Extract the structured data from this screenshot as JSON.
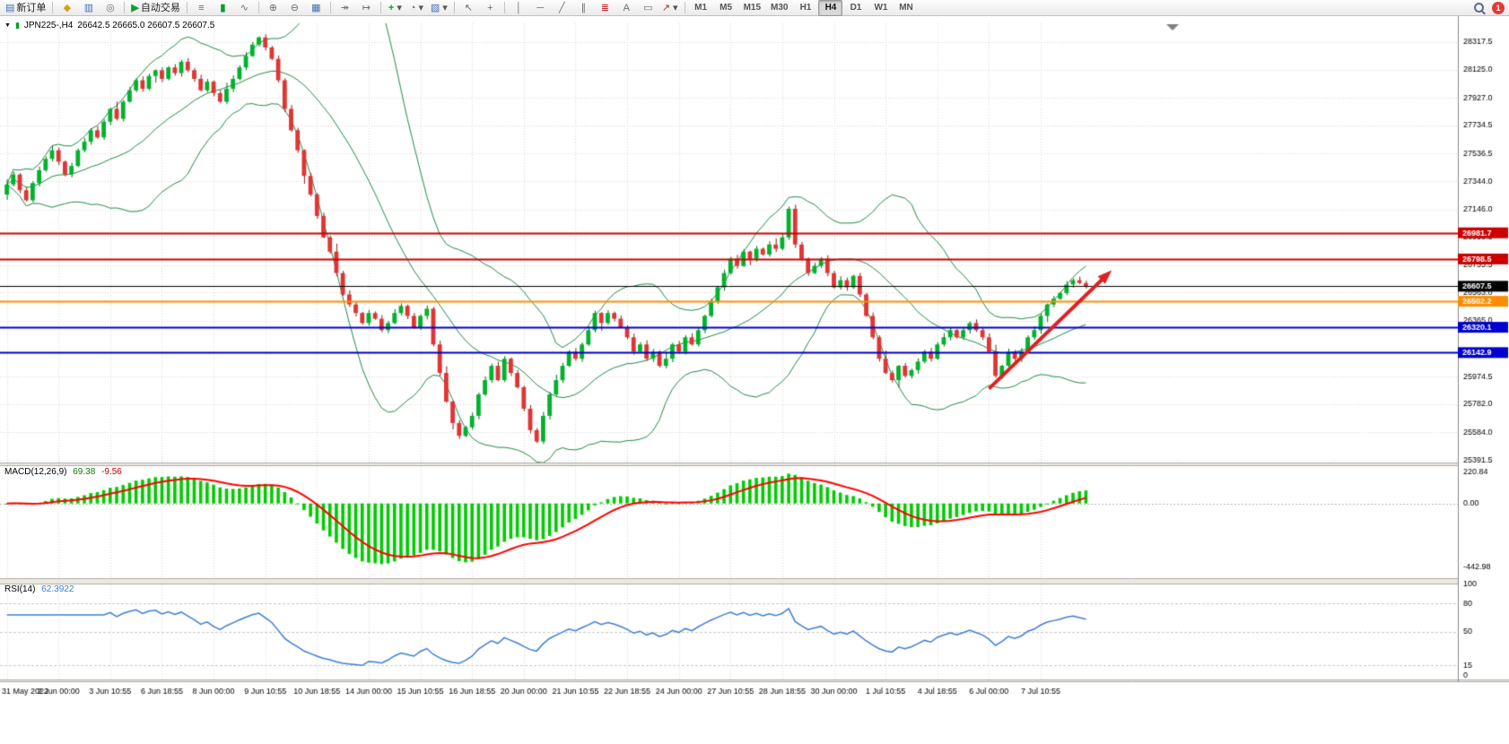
{
  "toolbar": {
    "new_order_label": "新订单",
    "auto_trading_label": "自动交易",
    "timeframes": [
      "M1",
      "M5",
      "M15",
      "M30",
      "H1",
      "H4",
      "D1",
      "W1",
      "MN"
    ],
    "active_timeframe": "H4",
    "notification_count": "1"
  },
  "icons": {
    "new_order": "▤",
    "market_watch": "◆",
    "navigator": "▥",
    "signals": "◎",
    "autotrading": "▶",
    "chart_bars": "≡",
    "chart_candles": "▮",
    "chart_line": "∿",
    "zoom_in": "⊕",
    "zoom_out": "⊖",
    "tile_windows": "▦",
    "auto_scroll": "↠",
    "chart_shift": "↦",
    "indicators": "+",
    "periods": "◔",
    "templates": "▧",
    "cursor": "↖",
    "crosshair": "+",
    "vline": "│",
    "hline": "─",
    "trendline": "╱",
    "channel": "∥",
    "fibonacci": "≣",
    "text": "A",
    "label": "▭",
    "arrows": "↗",
    "caret": "▾",
    "dropdown": "▼",
    "mini_chart": "▮"
  },
  "chart": {
    "title": {
      "symbol_period": "JPN225-,H4",
      "ohlc": "26642.5 26665.0 26607.5 26607.5"
    }
  },
  "chart_data": {
    "type": "candlestick",
    "symbol": "JPN225-",
    "period": "H4",
    "title": "JPN225-,H4",
    "ohlc_display": {
      "open": "26642.5",
      "high": "26665.0",
      "low": "26607.5",
      "close": "26607.5"
    },
    "x_labels": [
      "31 May 2022",
      "2 Jun 00:00",
      "3 Jun 10:55",
      "6 Jun 18:55",
      "8 Jun 00:00",
      "9 Jun 10:55",
      "10 Jun 18:55",
      "14 Jun 00:00",
      "15 Jun 10:55",
      "16 Jun 18:55",
      "20 Jun 00:00",
      "21 Jun 10:55",
      "22 Jun 18:55",
      "24 Jun 00:00",
      "27 Jun 10:55",
      "28 Jun 18:55",
      "30 Jun 00:00",
      "1 Jul 10:55",
      "4 Jul 18:55",
      "6 Jul 00:00",
      "7 Jul 10:55"
    ],
    "y_axis_labels": [
      "28317.5",
      "28125.0",
      "27927.0",
      "27734.5",
      "27536.5",
      "27344.0",
      "27146.0",
      "26953.5",
      "26755.5",
      "26563.0",
      "26365.0",
      "25974.5",
      "25782.0",
      "25584.0",
      "25391.5"
    ],
    "price_range": {
      "min": 25373,
      "max": 28449
    },
    "first_open": 27250,
    "candles_close": [
      27320,
      27390,
      27280,
      27210,
      27330,
      27420,
      27500,
      27560,
      27480,
      27390,
      27450,
      27560,
      27620,
      27700,
      27650,
      27760,
      27850,
      27780,
      27900,
      27980,
      28050,
      27990,
      28080,
      28120,
      28060,
      28140,
      28100,
      28180,
      28120,
      28060,
      27980,
      28040,
      27960,
      27900,
      27990,
      28060,
      28140,
      28220,
      28300,
      28350,
      28280,
      28200,
      28050,
      27850,
      27700,
      27560,
      27380,
      27250,
      27100,
      26950,
      26850,
      26700,
      26550,
      26480,
      26420,
      26350,
      26420,
      26380,
      26300,
      26350,
      26420,
      26470,
      26400,
      26320,
      26400,
      26450,
      26200,
      26000,
      25800,
      25650,
      25560,
      25620,
      25700,
      25850,
      25950,
      26050,
      25950,
      26100,
      26000,
      25900,
      25750,
      25600,
      25520,
      25700,
      25850,
      25950,
      26050,
      26150,
      26100,
      26200,
      26300,
      26420,
      26350,
      26420,
      26380,
      26320,
      26250,
      26150,
      26200,
      26100,
      26150,
      26050,
      26100,
      26200,
      26150,
      26250,
      26200,
      26300,
      26400,
      26500,
      26600,
      26700,
      26800,
      26750,
      26850,
      26800,
      26870,
      26830,
      26900,
      26870,
      26950,
      27150,
      26900,
      26800,
      26700,
      26750,
      26800,
      26700,
      26600,
      26650,
      26600,
      26680,
      26550,
      26400,
      26250,
      26100,
      26000,
      25950,
      26050,
      25980,
      26020,
      26080,
      26150,
      26100,
      26200,
      26250,
      26300,
      26250,
      26300,
      26350,
      26300,
      26250,
      26150,
      25980,
      26050,
      26150,
      26100,
      26150,
      26250,
      26300,
      26400,
      26480,
      26520,
      26560,
      26620,
      26650,
      26630,
      26607.5
    ],
    "up_color": "#00b22c",
    "down_color": "#e03434",
    "bollinger": {
      "period": 20,
      "deviation": 2,
      "color": "#1e8c46"
    },
    "horizontal_lines": [
      {
        "price": 26981.7,
        "badge": "26981.7",
        "color": "#cc0000",
        "width": 2
      },
      {
        "price": 26798.5,
        "badge": "26798.5",
        "color": "#cc0000",
        "width": 2
      },
      {
        "price": 26607.5,
        "badge": "26607.5",
        "color": "#000000",
        "width": 1
      },
      {
        "price": 26502.2,
        "badge": "26502.2",
        "color": "#ff8c00",
        "width": 2
      },
      {
        "price": 26320.1,
        "badge": "26320.1",
        "color": "#0000cd",
        "width": 2
      },
      {
        "price": 26142.9,
        "badge": "26142.9",
        "color": "#0000cd",
        "width": 2
      }
    ],
    "trend_arrow": {
      "from": {
        "index": 152,
        "price": 25890
      },
      "to": {
        "index": 171,
        "price": 26720
      },
      "color": "#e02020",
      "width": 4
    },
    "macd": {
      "label": "MACD(12,26,9)",
      "value": "69.38",
      "signal_value": "-9.56",
      "fast": 12,
      "slow": 26,
      "signal": 9,
      "scale": [
        "220.84",
        "0.00",
        "-442.98"
      ],
      "value_range": {
        "min": -520,
        "max": 260
      },
      "histogram_color": "#00cc00",
      "signal_color": "#ff0000"
    },
    "rsi": {
      "label": "RSI(14)",
      "value": "62.3922",
      "period": 14,
      "scale": [
        "100",
        "80",
        "50",
        "15",
        "0"
      ],
      "levels": [
        80,
        50,
        15
      ],
      "color": "#3e7fd4"
    }
  }
}
